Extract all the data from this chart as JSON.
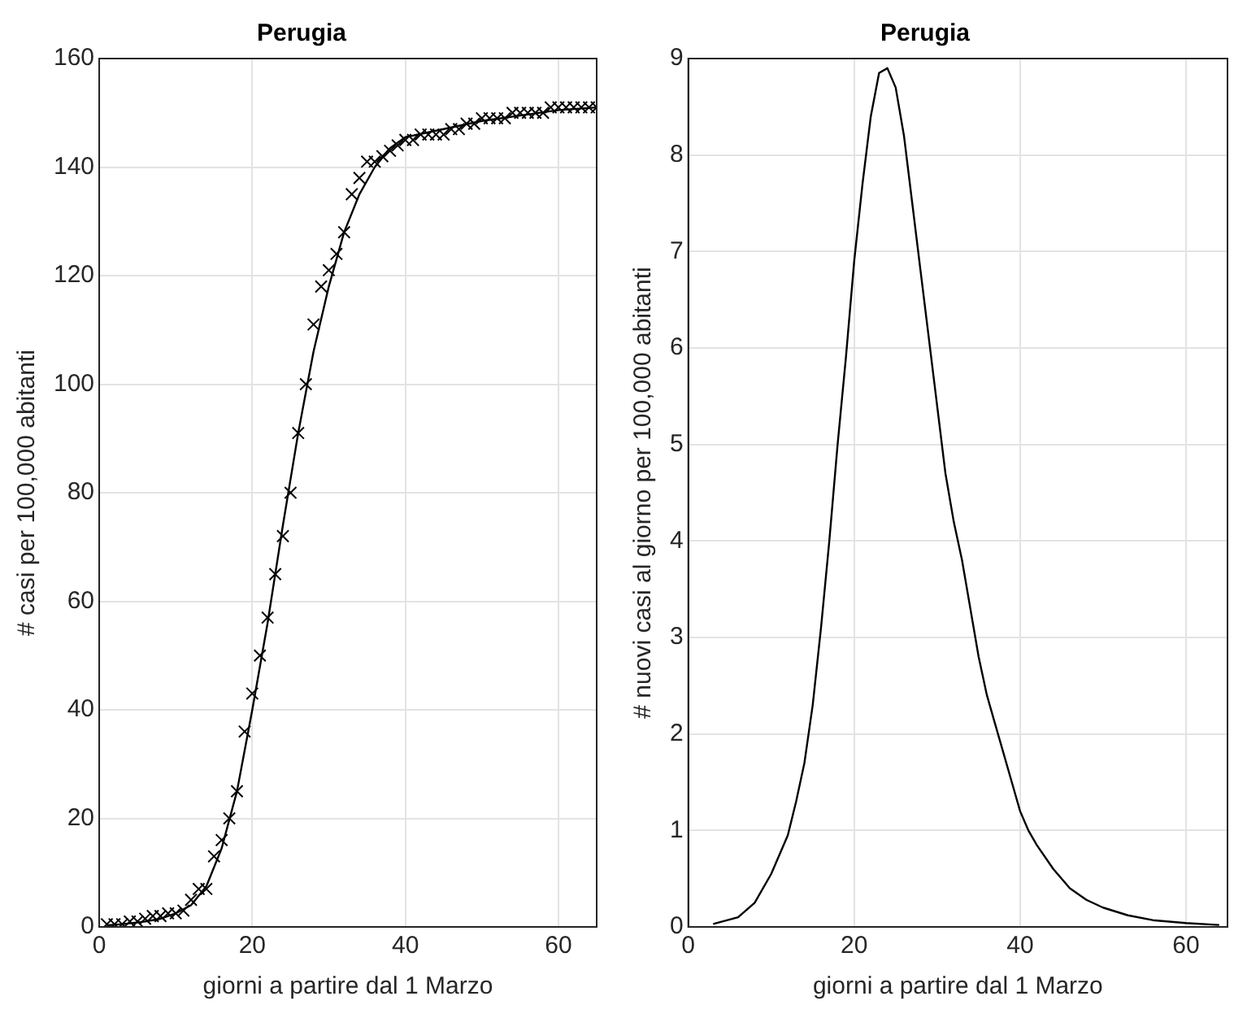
{
  "chart_data": [
    {
      "type": "scatter",
      "title": "Perugia",
      "xlabel": "giorni a partire dal 1 Marzo",
      "ylabel": "# casi per 100,000 abitanti",
      "xlim": [
        0,
        65
      ],
      "ylim": [
        0,
        160
      ],
      "xticks": [
        0,
        20,
        40,
        60
      ],
      "yticks": [
        0,
        20,
        40,
        60,
        80,
        100,
        120,
        140,
        160
      ],
      "grid": true,
      "legend": false,
      "series": [
        {
          "color": "#000000",
          "marker": "cross",
          "x": [
            1,
            2,
            3,
            4,
            5,
            6,
            7,
            8,
            9,
            10,
            11,
            12,
            13,
            14,
            15,
            16,
            17,
            18,
            19,
            20,
            21,
            22,
            23,
            24,
            25,
            26,
            27,
            28,
            29,
            30,
            31,
            32,
            33,
            34,
            35,
            36,
            37,
            38,
            39,
            40,
            41,
            42,
            43,
            44,
            45,
            46,
            47,
            48,
            49,
            50,
            51,
            52,
            53,
            54,
            55,
            56,
            57,
            58,
            59,
            60,
            61,
            62,
            63,
            64,
            65
          ],
          "values": [
            0.5,
            0.5,
            0.5,
            1,
            1,
            1.5,
            2,
            2,
            2.5,
            2.5,
            3,
            5,
            7,
            7,
            13,
            16,
            20,
            25,
            36,
            43,
            50,
            57,
            65,
            72,
            80,
            91,
            100,
            111,
            118,
            121,
            124,
            128,
            135,
            138,
            141,
            141,
            142,
            143,
            144,
            145,
            145,
            146,
            146,
            146,
            146,
            147,
            147,
            148,
            148,
            149,
            149,
            149,
            149,
            150,
            150,
            150,
            150,
            150,
            151,
            151,
            151,
            151,
            151,
            151,
            151
          ]
        },
        {
          "type": "line",
          "color": "#000000",
          "line_style": "solid",
          "x": [
            1,
            3,
            6,
            8,
            10,
            12,
            14,
            16,
            18,
            20,
            22,
            24,
            26,
            28,
            30,
            32,
            34,
            36,
            38,
            40,
            45,
            50,
            55,
            60,
            65
          ],
          "values": [
            0.3,
            0.5,
            1,
            1.5,
            2.5,
            4,
            7.5,
            14.5,
            25,
            40,
            56,
            74,
            91,
            106,
            118,
            128,
            135,
            140,
            143.5,
            145.5,
            147,
            148.5,
            149.5,
            150.5,
            151
          ]
        }
      ]
    },
    {
      "type": "line",
      "title": "Perugia",
      "xlabel": "giorni a partire dal 1 Marzo",
      "ylabel": "# nuovi casi al giorno per 100,000 abitanti",
      "xlim": [
        0,
        65
      ],
      "ylim": [
        0,
        9
      ],
      "xticks": [
        0,
        20,
        40,
        60
      ],
      "yticks": [
        0,
        1,
        2,
        3,
        4,
        5,
        6,
        7,
        8,
        9
      ],
      "grid": true,
      "legend": false,
      "series": [
        {
          "color": "#000000",
          "line_style": "solid",
          "x": [
            3,
            6,
            8,
            10,
            12,
            13,
            14,
            15,
            16,
            17,
            18,
            19,
            20,
            21,
            22,
            23,
            24,
            25,
            26,
            27,
            28,
            29,
            30,
            31,
            32,
            33,
            34,
            35,
            36,
            37,
            38,
            39,
            40,
            41,
            42,
            44,
            46,
            48,
            50,
            53,
            56,
            60,
            64
          ],
          "values": [
            0.03,
            0.1,
            0.25,
            0.55,
            0.95,
            1.3,
            1.7,
            2.3,
            3.1,
            4,
            5,
            5.9,
            6.9,
            7.7,
            8.4,
            8.85,
            8.9,
            8.7,
            8.2,
            7.5,
            6.8,
            6.1,
            5.4,
            4.7,
            4.2,
            3.8,
            3.3,
            2.8,
            2.4,
            2.1,
            1.8,
            1.5,
            1.2,
            1,
            0.85,
            0.6,
            0.4,
            0.28,
            0.2,
            0.12,
            0.07,
            0.04,
            0.02
          ]
        }
      ]
    }
  ]
}
